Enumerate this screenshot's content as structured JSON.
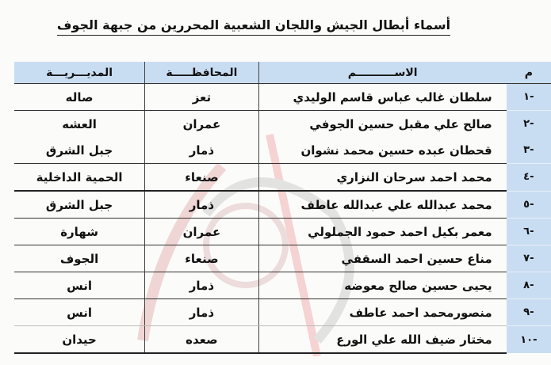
{
  "title": "أسماء أبطال الجيش واللجان الشعبية  المحررين من جبهة الجوف",
  "colors": {
    "header_bg": "#c9ddf2",
    "number_column_bg": "#c9ddf2"
  },
  "table": {
    "headers": {
      "num": "م",
      "name": "الاســــــــــم",
      "governorate": "المحافظـــــة",
      "district": "المديـــريـــة"
    },
    "rows": [
      {
        "num": "-١",
        "name": "سلطان غالب عباس قاسم الوليدي",
        "governorate": "تعز",
        "district": "صاله"
      },
      {
        "num": "-٢",
        "name": "صالح علي مقبل حسين الجوفي",
        "governorate": "عمران",
        "district": "العشه"
      },
      {
        "num": "-٣",
        "name": "قحطان عبده حسين محمد نشوان",
        "governorate": "ذمار",
        "district": "جبل الشرق"
      },
      {
        "num": "-٤",
        "name": "محمد احمد سرحان النزاري",
        "governorate": "صنعاء",
        "district": "الحمية الداخلية"
      },
      {
        "num": "-٥",
        "name": "محمد عبدالله علي عبدالله عاطف",
        "governorate": "ذمار",
        "district": "جبل الشرق"
      },
      {
        "num": "-٦",
        "name": "معمر بكيل احمد حمود الجملولي",
        "governorate": "عمران",
        "district": "شهارة"
      },
      {
        "num": "-٧",
        "name": "مناع حسين احمد السقفي",
        "governorate": "صنعاء",
        "district": "الجوف"
      },
      {
        "num": "-٨",
        "name": "يحيى حسين صالح معوضه",
        "governorate": "ذمار",
        "district": "انس"
      },
      {
        "num": "-٩",
        "name": "منصورمحمد احمد عاطف",
        "governorate": "ذمار",
        "district": "انس"
      },
      {
        "num": "-١٠",
        "name": "مختار ضيف الله علي الورع",
        "governorate": "صعده",
        "district": "حيدان"
      }
    ]
  }
}
